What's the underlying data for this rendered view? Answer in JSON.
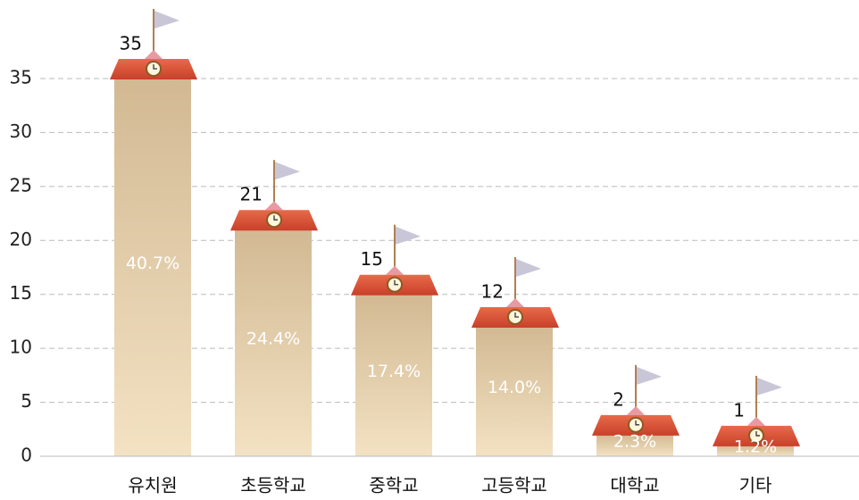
{
  "chart_data": {
    "type": "bar",
    "categories": [
      "유치원",
      "초등학교",
      "중학교",
      "고등학교",
      "대학교",
      "기타"
    ],
    "values": [
      35,
      21,
      15,
      12,
      2,
      1
    ],
    "color": "#dcc39f",
    "shares": {
      "values": [
        40.7,
        24.4,
        17.4,
        14.0,
        2.3,
        1.2
      ],
      "value_labels": [
        "40.7%",
        "24.4%",
        "17.4%",
        "14.0%",
        "2.3%",
        "1.2%"
      ]
    },
    "ylim": [
      0,
      35
    ],
    "yticks": [
      0,
      5,
      10,
      15,
      20,
      25,
      30,
      35
    ],
    "grid": true
  }
}
